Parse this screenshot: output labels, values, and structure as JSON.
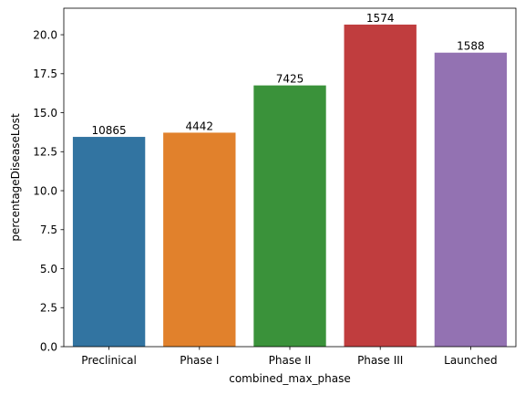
{
  "chart_data": {
    "type": "bar",
    "xlabel": "combined_max_phase",
    "ylabel": "percentageDiseaseLost",
    "categories": [
      "Preclinical",
      "Phase I",
      "Phase II",
      "Phase III",
      "Launched"
    ],
    "values": [
      13.45,
      13.72,
      16.75,
      20.65,
      18.85
    ],
    "bar_labels": [
      "10865",
      "4442",
      "7425",
      "1574",
      "1588"
    ],
    "colors": [
      "#3274a1",
      "#e1812c",
      "#3a923a",
      "#c03d3e",
      "#9372b2"
    ],
    "ylim": [
      0,
      21.7
    ],
    "yticks": [
      0.0,
      2.5,
      5.0,
      7.5,
      10.0,
      12.5,
      15.0,
      17.5,
      20.0
    ],
    "ytick_labels": [
      "0.0",
      "2.5",
      "5.0",
      "7.5",
      "10.0",
      "12.5",
      "15.0",
      "17.5",
      "20.0"
    ],
    "grid": false,
    "legend": "none"
  }
}
